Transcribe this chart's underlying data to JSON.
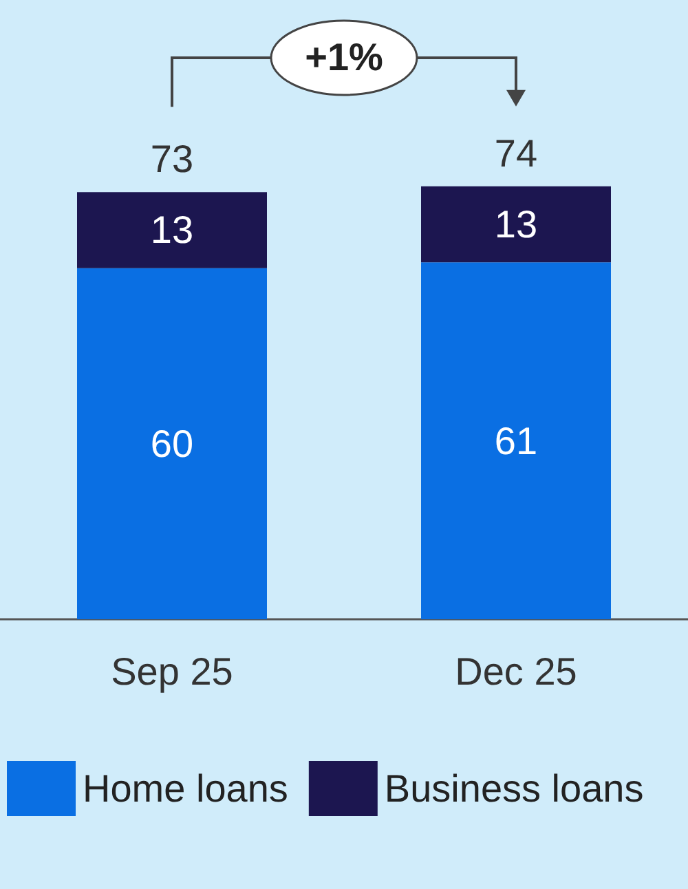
{
  "chart_data": {
    "type": "bar",
    "stacked": true,
    "categories": [
      "Sep 25",
      "Dec 25"
    ],
    "series": [
      {
        "name": "Home loans",
        "color": "#0a6fe3",
        "values": [
          60,
          61
        ]
      },
      {
        "name": "Business loans",
        "color": "#1c1650",
        "values": [
          13,
          13
        ]
      }
    ],
    "data_labels": true,
    "totals": [
      "73",
      "74"
    ],
    "annotations": [
      "+1%"
    ],
    "legend": "bottom left",
    "grid": false
  }
}
